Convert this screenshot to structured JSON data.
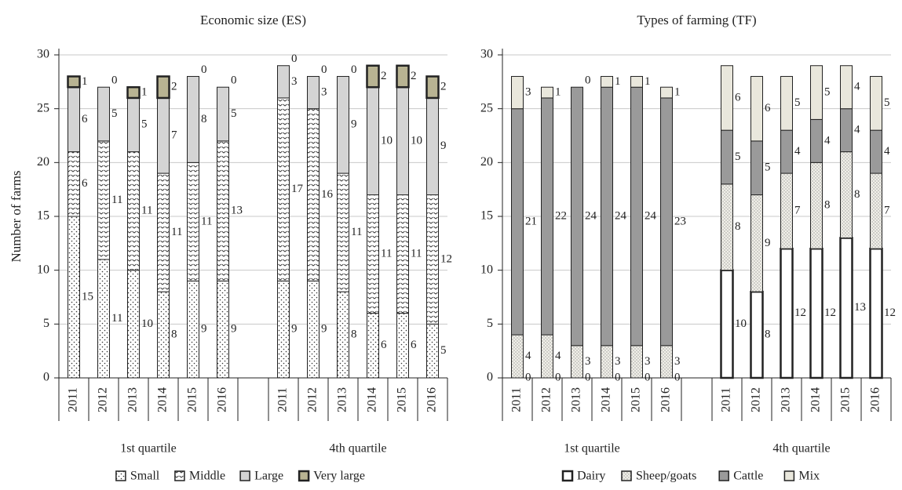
{
  "chart_data": [
    {
      "type": "stacked_bar",
      "title": "Economic size (ES)",
      "ylabel": "Number of farms",
      "groups": [
        "1st quartile",
        "4th quartile"
      ],
      "categories": [
        "2011",
        "2012",
        "2013",
        "2014",
        "2015",
        "2016",
        "2011",
        "2012",
        "2013",
        "2014",
        "2015",
        "2016"
      ],
      "ylim": [
        0,
        30
      ],
      "yticks": [
        0,
        5,
        10,
        15,
        20,
        25,
        30
      ],
      "grid": true,
      "series": [
        {
          "name": "Small",
          "color": "#ffffff",
          "pattern": "dots",
          "values": [
            15,
            11,
            10,
            8,
            9,
            9,
            9,
            9,
            8,
            6,
            6,
            5
          ]
        },
        {
          "name": "Middle",
          "color": "#ffffff",
          "pattern": "zigzag",
          "values": [
            6,
            11,
            11,
            11,
            11,
            13,
            17,
            16,
            11,
            11,
            11,
            12
          ]
        },
        {
          "name": "Large",
          "color": "#d4d4d4",
          "values": [
            6,
            5,
            5,
            7,
            8,
            5,
            3,
            3,
            9,
            10,
            10,
            9
          ]
        },
        {
          "name": "Very large",
          "color": "#b8b392",
          "bold_edge": true,
          "values": [
            1,
            0,
            1,
            2,
            0,
            0,
            0,
            0,
            0,
            2,
            2,
            2
          ]
        }
      ]
    },
    {
      "type": "stacked_bar",
      "title": "Types of farming (TF)",
      "groups": [
        "1st quartile",
        "4th quartile"
      ],
      "categories": [
        "2011",
        "2012",
        "2013",
        "2014",
        "2015",
        "2016",
        "2011",
        "2012",
        "2013",
        "2014",
        "2015",
        "2016"
      ],
      "ylim": [
        0,
        30
      ],
      "yticks": [
        0,
        5,
        10,
        15,
        20,
        25,
        30
      ],
      "grid": true,
      "series": [
        {
          "name": "Dairy",
          "color": "#ffffff",
          "bold_edge": true,
          "values": [
            0,
            0,
            0,
            0,
            0,
            0,
            10,
            8,
            12,
            12,
            13,
            12
          ]
        },
        {
          "name": "Sheep/goats",
          "color": "#f0efe8",
          "pattern": "finedots",
          "values": [
            4,
            4,
            3,
            3,
            3,
            3,
            8,
            9,
            7,
            8,
            8,
            7
          ]
        },
        {
          "name": "Cattle",
          "color": "#9a9a9a",
          "values": [
            21,
            22,
            24,
            24,
            24,
            23,
            5,
            5,
            4,
            4,
            4,
            4
          ]
        },
        {
          "name": "Mix",
          "color": "#e9e7dc",
          "values": [
            3,
            1,
            0,
            1,
            1,
            1,
            6,
            6,
            5,
            5,
            4,
            5
          ]
        }
      ]
    }
  ]
}
